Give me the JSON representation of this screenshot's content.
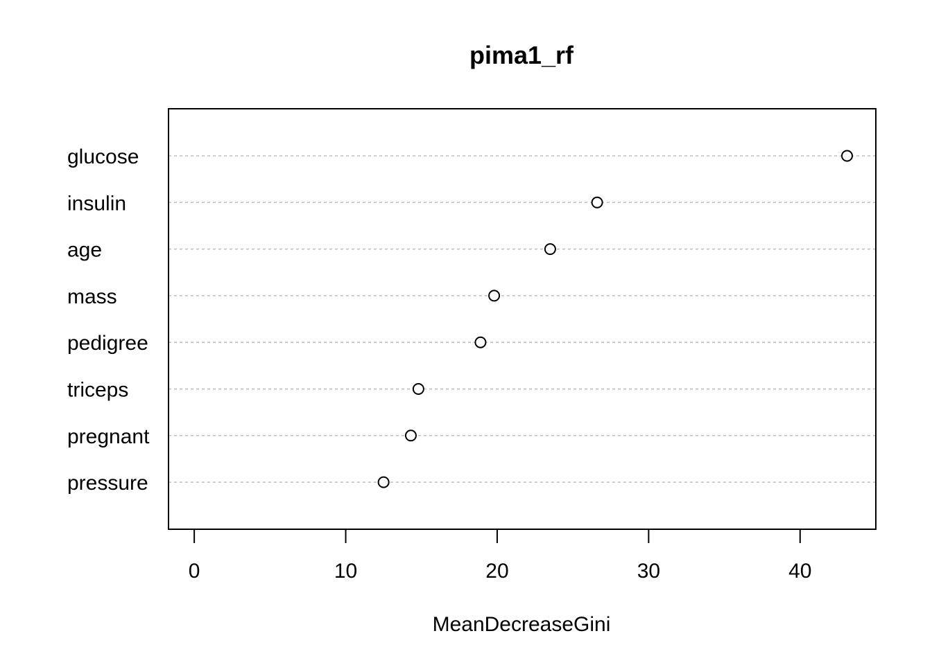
{
  "chart_data": {
    "type": "scatter",
    "title": "pima1_rf",
    "xlabel": "MeanDecreaseGini",
    "ylabel": "",
    "categories": [
      "glucose",
      "insulin",
      "age",
      "mass",
      "pedigree",
      "triceps",
      "pregnant",
      "pressure"
    ],
    "values": [
      43.1,
      26.6,
      23.5,
      19.8,
      18.9,
      14.8,
      14.3,
      12.5
    ],
    "x_ticks": [
      0,
      10,
      20,
      30,
      40
    ],
    "xlim": [
      -1.7,
      45
    ],
    "grid": "horizontal dotted",
    "marker": "open circle",
    "colors": {
      "marker": "#000000",
      "grid": "#bebebe",
      "frame": "#000000"
    }
  }
}
